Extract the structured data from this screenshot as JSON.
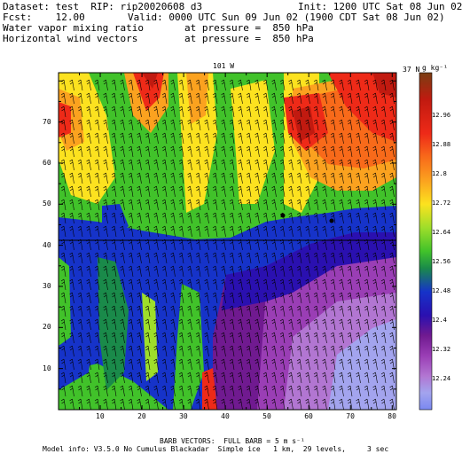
{
  "header": {
    "dataset_line": "Dataset: test  RIP: rip20020608 d3",
    "init_line": "Init: 1200 UTC Sat 08 Jun 02",
    "fcst_line": "Fcst:    12.00",
    "valid_line": "Valid: 0000 UTC Sun 09 Jun 02 (1900 CDT Sat 08 Jun 02)",
    "field1_name": "Water vapor mixing ratio",
    "field1_level": "at pressure =  850 hPa",
    "field2_name": "Horizontal wind vectors",
    "field2_level": "at pressure =  850 hPa"
  },
  "plot": {
    "top_label": "101 W",
    "right_label": "37 N",
    "unit_label": "g kg⁻¹",
    "x_ticks": [
      "10",
      "20",
      "30",
      "40",
      "50",
      "60",
      "70",
      "80"
    ],
    "y_ticks": [
      "70",
      "60",
      "50",
      "40",
      "30",
      "20",
      "10"
    ]
  },
  "colorbar": {
    "labels": [
      "12.96",
      "12.88",
      "12.8",
      "12.72",
      "12.64",
      "12.56",
      "12.48",
      "12.4",
      "12.32",
      "12.24"
    ],
    "colors": [
      "#7a3e12",
      "#c11a10",
      "#ee2a18",
      "#f86a1a",
      "#fba21f",
      "#fce21f",
      "#9ede2a",
      "#41c22a",
      "#1a8a4a",
      "#1633c9",
      "#2a10b0",
      "#701a90",
      "#9a3eb5",
      "#b276d2",
      "#a3a4ee",
      "#7a88f0"
    ]
  },
  "footer": {
    "barb_line": "BARB VECTORS:  FULL BARB = 5 m s⁻¹",
    "model_line": "Model info: V3.5.0 No Cumulus Blackadar  Simple ice   1 km,  29 levels,     3 sec"
  },
  "colors": {
    "frame": "#000000",
    "background": "#ffffff"
  }
}
